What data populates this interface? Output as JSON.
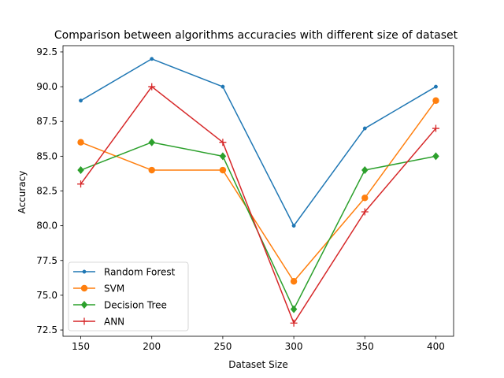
{
  "chart_data": {
    "type": "line",
    "title": "Comparison between algorithms accuracies with different size of dataset",
    "xlabel": "Dataset Size",
    "ylabel": "Accuracy",
    "x": [
      150,
      200,
      250,
      300,
      350,
      400
    ],
    "xticks": [
      150,
      200,
      250,
      300,
      350,
      400
    ],
    "xlim": [
      137.5,
      412.5
    ],
    "yticks": [
      72.5,
      75.0,
      77.5,
      80.0,
      82.5,
      85.0,
      87.5,
      90.0,
      92.5
    ],
    "ylim": [
      72.05,
      92.95
    ],
    "grid": false,
    "legend_position": "lower-left",
    "series": [
      {
        "name": "Random Forest",
        "values": [
          89,
          92,
          90,
          80,
          87,
          90
        ],
        "color": "#1f77b4",
        "marker": "point"
      },
      {
        "name": "SVM",
        "values": [
          86,
          84,
          84,
          76,
          82,
          89
        ],
        "color": "#ff7f0e",
        "marker": "circle"
      },
      {
        "name": "Decision Tree",
        "values": [
          84,
          86,
          85,
          74,
          84,
          85
        ],
        "color": "#2ca02c",
        "marker": "diamond"
      },
      {
        "name": "ANN",
        "values": [
          83,
          90,
          86,
          73,
          81,
          87
        ],
        "color": "#d62728",
        "marker": "plus"
      }
    ]
  }
}
